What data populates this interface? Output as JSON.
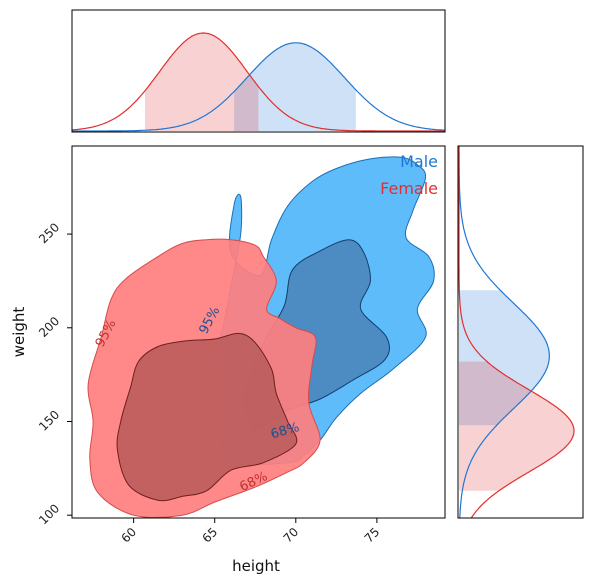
{
  "chart_data": {
    "type": "contour",
    "title": "",
    "xlabel": "height",
    "ylabel": "weight",
    "xlim": [
      56.2,
      79.2
    ],
    "ylim": [
      98.5,
      297
    ],
    "xticks": [
      60,
      65,
      70,
      75
    ],
    "yticks": [
      100,
      150,
      200,
      250
    ],
    "legend_placement": "top-right",
    "grid": false,
    "series": [
      {
        "name": "Male",
        "color": "#1f77d4",
        "fill_color": "#5fbcfb",
        "dark_fill": "#4a82b8",
        "height_mean": 70.0,
        "height_sd": 3.0,
        "weight_mean": 185,
        "weight_sd": 28,
        "height_interval_95": [
          66.2,
          73.7
        ],
        "weight_interval_95": [
          148,
          220
        ],
        "contour_labels": [
          "95%",
          "68%"
        ],
        "contours": {
          "95": [
            [
              66.6,
              270
            ],
            [
              66.2,
              266
            ],
            [
              66.0,
              240
            ],
            [
              67.8,
              228
            ],
            [
              68.5,
              247
            ],
            [
              69.5,
              265
            ],
            [
              71.0,
              278
            ],
            [
              72.5,
              285
            ],
            [
              74.5,
              290
            ],
            [
              76.5,
              291
            ],
            [
              77.5,
              287
            ],
            [
              78.0,
              280
            ],
            [
              77.2,
              262
            ],
            [
              76.8,
              248
            ],
            [
              78.2,
              238
            ],
            [
              78.5,
              225
            ],
            [
              77.5,
              210
            ],
            [
              78.0,
              195
            ],
            [
              76.0,
              178
            ],
            [
              74.0,
              165
            ],
            [
              72.5,
              152
            ],
            [
              71.5,
              140
            ],
            [
              70.5,
              132
            ],
            [
              69.5,
              128
            ],
            [
              66.0,
              128
            ],
            [
              65.5,
              140
            ],
            [
              65.8,
              160
            ],
            [
              65.0,
              185
            ],
            [
              65.5,
              200
            ],
            [
              66.0,
              222
            ],
            [
              66.6,
              250
            ]
          ],
          "68": [
            [
              69.8,
              231
            ],
            [
              71.5,
              241
            ],
            [
              73.3,
              247
            ],
            [
              74.2,
              240
            ],
            [
              74.6,
              225
            ],
            [
              74.0,
              210
            ],
            [
              75.6,
              195
            ],
            [
              75.5,
              183
            ],
            [
              73.5,
              172
            ],
            [
              71.5,
              162
            ],
            [
              69.5,
              156
            ],
            [
              68.5,
              150
            ],
            [
              67.4,
              145
            ],
            [
              67.3,
              150
            ],
            [
              66.8,
              160
            ],
            [
              67.3,
              178
            ],
            [
              68.2,
              195
            ],
            [
              69.3,
              212
            ]
          ]
        }
      },
      {
        "name": "Female",
        "color": "#e03030",
        "fill_color": "#ff7f7f",
        "dark_fill": "#b85a5a",
        "height_mean": 64.3,
        "height_sd": 2.7,
        "weight_mean": 145,
        "weight_sd": 22,
        "height_interval_95": [
          60.7,
          67.7
        ],
        "weight_interval_95": [
          113,
          182
        ],
        "contour_labels": [
          "95%",
          "68%"
        ],
        "contours": {
          "95": [
            [
              59.5,
              226
            ],
            [
              61.5,
              238
            ],
            [
              63.0,
              245
            ],
            [
              64.5,
              247
            ],
            [
              66.0,
              247
            ],
            [
              67.5,
              244
            ],
            [
              68.0,
              238
            ],
            [
              68.8,
              225
            ],
            [
              68.2,
              210
            ],
            [
              69.0,
              205
            ],
            [
              70.0,
              200
            ],
            [
              71.2,
              195
            ],
            [
              71.0,
              180
            ],
            [
              70.8,
              160
            ],
            [
              71.5,
              140
            ],
            [
              70.5,
              128
            ],
            [
              69.5,
              123
            ],
            [
              67.5,
              115
            ],
            [
              65.0,
              107
            ],
            [
              63.0,
              100
            ],
            [
              60.0,
              100
            ],
            [
              57.8,
              112
            ],
            [
              57.3,
              130
            ],
            [
              57.5,
              150
            ],
            [
              57.2,
              170
            ],
            [
              58.0,
              195
            ],
            [
              58.6,
              215
            ]
          ],
          "68": [
            [
              61.5,
              190
            ],
            [
              63.2,
              193
            ],
            [
              65.0,
              194
            ],
            [
              66.5,
              197
            ],
            [
              67.5,
              192
            ],
            [
              68.5,
              178
            ],
            [
              68.8,
              165
            ],
            [
              69.5,
              150
            ],
            [
              70.0,
              138
            ],
            [
              68.0,
              128
            ],
            [
              66.0,
              124
            ],
            [
              64.5,
              113
            ],
            [
              63.0,
              110
            ],
            [
              61.5,
              108
            ],
            [
              59.7,
              116
            ],
            [
              59.0,
              135
            ],
            [
              59.2,
              150
            ],
            [
              59.8,
              168
            ],
            [
              60.3,
              182
            ]
          ]
        }
      }
    ],
    "contour_label_positions": [
      {
        "series": 0,
        "text": "95%",
        "x": 64.9,
        "y": 203,
        "rotate": -62
      },
      {
        "series": 0,
        "text": "68%",
        "x": 69.4,
        "y": 143,
        "rotate": -16
      },
      {
        "series": 1,
        "text": "95%",
        "x": 58.5,
        "y": 196,
        "rotate": -62
      },
      {
        "series": 1,
        "text": "68%",
        "x": 67.5,
        "y": 116,
        "rotate": -25
      }
    ]
  }
}
